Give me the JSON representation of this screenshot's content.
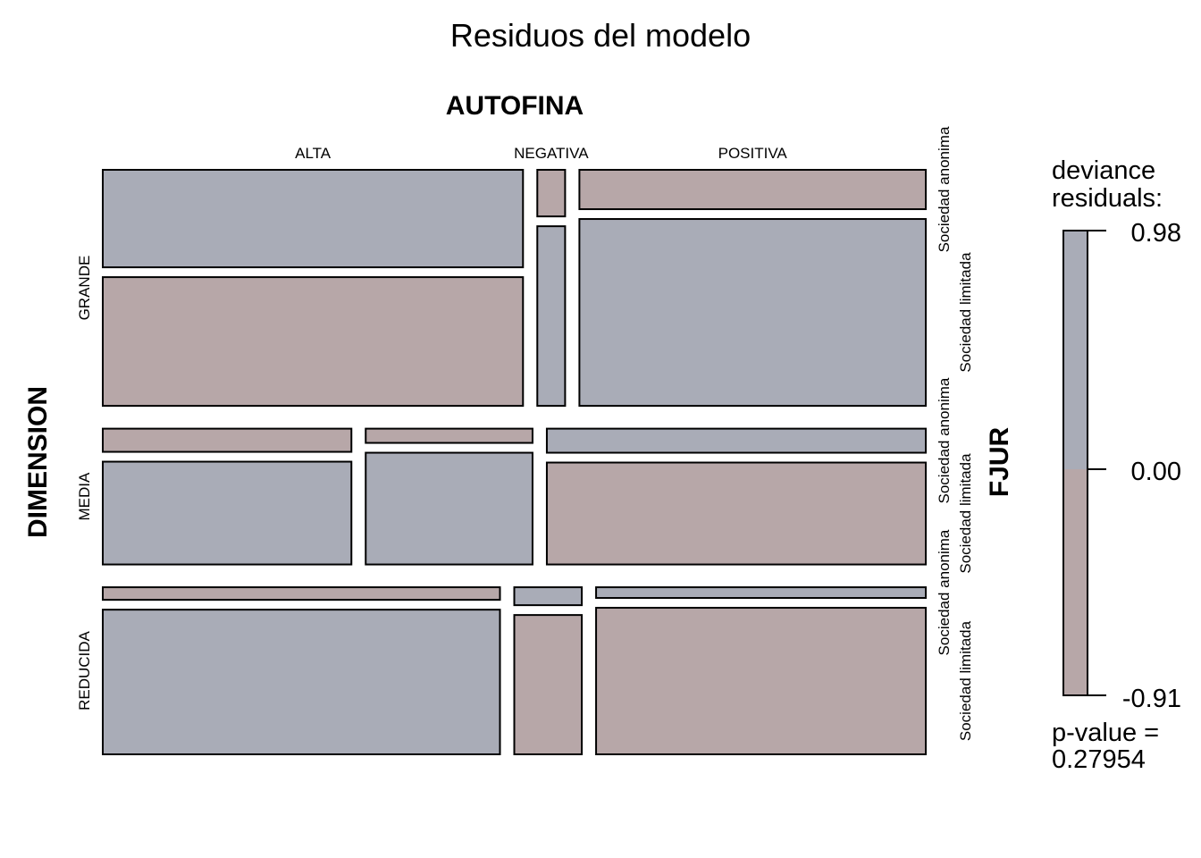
{
  "chart_data": {
    "type": "mosaic",
    "title": "Residuos del modelo",
    "variables": {
      "columns": "AUTOFINA",
      "rows": "DIMENSION",
      "split": "FJUR"
    },
    "dimension_levels": [
      "GRANDE",
      "MEDIA",
      "REDUCIDA"
    ],
    "autofina_levels": [
      "ALTA",
      "NEGATIVA",
      "POSITIVA"
    ],
    "fjur_levels": [
      "Sociedad anonima",
      "Sociedad limitada"
    ],
    "dimension_share": [
      0.438,
      0.252,
      0.31
    ],
    "autofina_share_by_dimension": [
      [
        0.529,
        0.035,
        0.436
      ],
      [
        0.313,
        0.21,
        0.477
      ],
      [
        0.5,
        0.085,
        0.415
      ]
    ],
    "sociedad_anonima_share": [
      [
        0.431,
        0.206,
        0.174
      ],
      [
        0.184,
        0.113,
        0.191
      ],
      [
        0.08,
        0.114,
        0.068
      ]
    ],
    "residual_sign": [
      [
        [
          "+",
          "-"
        ],
        [
          "-",
          "+"
        ],
        [
          "-",
          "+"
        ]
      ],
      [
        [
          "-",
          "+"
        ],
        [
          "-",
          "+"
        ],
        [
          "+",
          "-"
        ]
      ],
      [
        [
          "-",
          "+"
        ],
        [
          "+",
          "-"
        ],
        [
          "+",
          "-"
        ]
      ]
    ],
    "legend": {
      "title_line1": "deviance",
      "title_line2": "residuals:",
      "max": "0.98",
      "mid": "0.00",
      "min": "-0.91",
      "pvalue_line1": "p-value =",
      "pvalue_line2": "0.27954"
    },
    "colors": {
      "positive": "#A9ACB7",
      "negative": "#B7A7A8"
    }
  }
}
